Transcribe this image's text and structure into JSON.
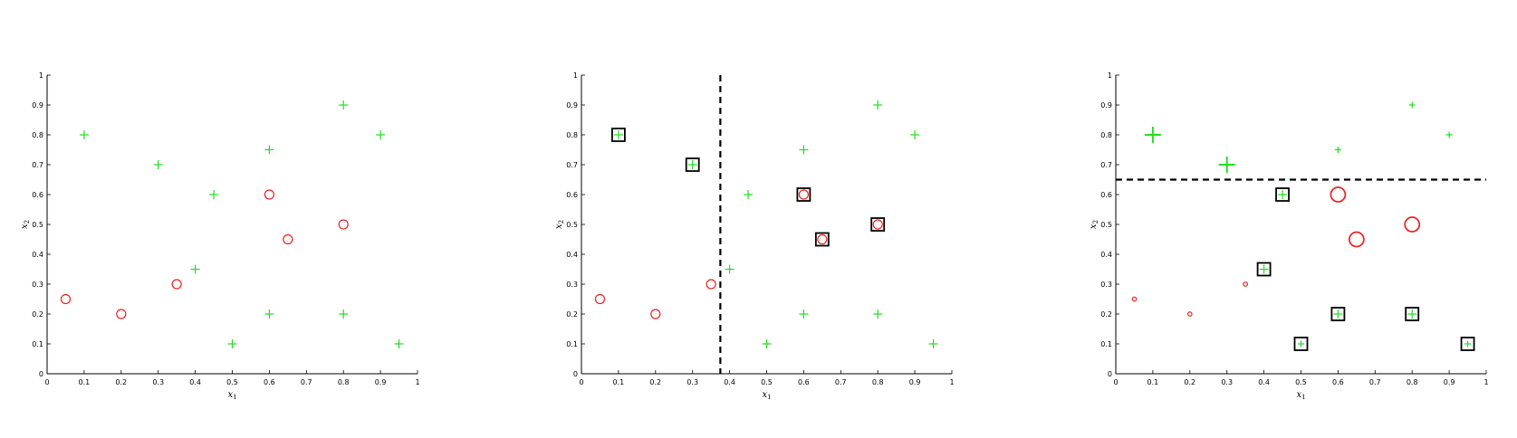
{
  "colors": {
    "positive": "#22dd22",
    "negative": "#ee2222",
    "axis": "#000000",
    "marker_box": "#000000",
    "boundary": "#000000"
  },
  "chart_data": [
    {
      "type": "scatter",
      "title": "",
      "xlabel": "x1",
      "ylabel": "x2",
      "xlim": [
        0,
        1
      ],
      "ylim": [
        0,
        1
      ],
      "xticks": [
        "0",
        "0.1",
        "0.2",
        "0.3",
        "0.4",
        "0.5",
        "0.6",
        "0.7",
        "0.8",
        "0.9",
        "1"
      ],
      "yticks": [
        "0",
        "0.1",
        "0.2",
        "0.3",
        "0.4",
        "0.5",
        "0.6",
        "0.7",
        "0.8",
        "0.9",
        "1"
      ],
      "grid": false,
      "boundary": null,
      "points": [
        {
          "x": 0.05,
          "y": 0.25,
          "label": "o",
          "weight": 1,
          "boxed": false
        },
        {
          "x": 0.2,
          "y": 0.2,
          "label": "o",
          "weight": 1,
          "boxed": false
        },
        {
          "x": 0.35,
          "y": 0.3,
          "label": "o",
          "weight": 1,
          "boxed": false
        },
        {
          "x": 0.6,
          "y": 0.6,
          "label": "o",
          "weight": 1,
          "boxed": false
        },
        {
          "x": 0.65,
          "y": 0.45,
          "label": "o",
          "weight": 1,
          "boxed": false
        },
        {
          "x": 0.8,
          "y": 0.5,
          "label": "o",
          "weight": 1,
          "boxed": false
        },
        {
          "x": 0.1,
          "y": 0.8,
          "label": "+",
          "weight": 1,
          "boxed": false
        },
        {
          "x": 0.3,
          "y": 0.7,
          "label": "+",
          "weight": 1,
          "boxed": false
        },
        {
          "x": 0.45,
          "y": 0.6,
          "label": "+",
          "weight": 1,
          "boxed": false
        },
        {
          "x": 0.4,
          "y": 0.35,
          "label": "+",
          "weight": 1,
          "boxed": false
        },
        {
          "x": 0.5,
          "y": 0.1,
          "label": "+",
          "weight": 1,
          "boxed": false
        },
        {
          "x": 0.6,
          "y": 0.2,
          "label": "+",
          "weight": 1,
          "boxed": false
        },
        {
          "x": 0.6,
          "y": 0.75,
          "label": "+",
          "weight": 1,
          "boxed": false
        },
        {
          "x": 0.8,
          "y": 0.9,
          "label": "+",
          "weight": 1,
          "boxed": false
        },
        {
          "x": 0.8,
          "y": 0.2,
          "label": "+",
          "weight": 1,
          "boxed": false
        },
        {
          "x": 0.9,
          "y": 0.8,
          "label": "+",
          "weight": 1,
          "boxed": false
        },
        {
          "x": 0.95,
          "y": 0.1,
          "label": "+",
          "weight": 1,
          "boxed": false
        }
      ]
    },
    {
      "type": "scatter",
      "title": "",
      "xlabel": "x1",
      "ylabel": "x2",
      "xlim": [
        0,
        1
      ],
      "ylim": [
        0,
        1
      ],
      "xticks": [
        "0",
        "0.1",
        "0.2",
        "0.3",
        "0.4",
        "0.5",
        "0.6",
        "0.7",
        "0.8",
        "0.9",
        "1"
      ],
      "yticks": [
        "0",
        "0.1",
        "0.2",
        "0.3",
        "0.4",
        "0.5",
        "0.6",
        "0.7",
        "0.8",
        "0.9",
        "1"
      ],
      "grid": false,
      "boundary": {
        "orientation": "vertical",
        "value": 0.375,
        "style": "dashed"
      },
      "points": [
        {
          "x": 0.05,
          "y": 0.25,
          "label": "o",
          "weight": 1,
          "boxed": false
        },
        {
          "x": 0.2,
          "y": 0.2,
          "label": "o",
          "weight": 1,
          "boxed": false
        },
        {
          "x": 0.35,
          "y": 0.3,
          "label": "o",
          "weight": 1,
          "boxed": false
        },
        {
          "x": 0.6,
          "y": 0.6,
          "label": "o",
          "weight": 1,
          "boxed": true
        },
        {
          "x": 0.65,
          "y": 0.45,
          "label": "o",
          "weight": 1,
          "boxed": true
        },
        {
          "x": 0.8,
          "y": 0.5,
          "label": "o",
          "weight": 1,
          "boxed": true
        },
        {
          "x": 0.1,
          "y": 0.8,
          "label": "+",
          "weight": 1,
          "boxed": true
        },
        {
          "x": 0.3,
          "y": 0.7,
          "label": "+",
          "weight": 1,
          "boxed": true
        },
        {
          "x": 0.45,
          "y": 0.6,
          "label": "+",
          "weight": 1,
          "boxed": false
        },
        {
          "x": 0.4,
          "y": 0.35,
          "label": "+",
          "weight": 1,
          "boxed": false
        },
        {
          "x": 0.5,
          "y": 0.1,
          "label": "+",
          "weight": 1,
          "boxed": false
        },
        {
          "x": 0.6,
          "y": 0.2,
          "label": "+",
          "weight": 1,
          "boxed": false
        },
        {
          "x": 0.6,
          "y": 0.75,
          "label": "+",
          "weight": 1,
          "boxed": false
        },
        {
          "x": 0.8,
          "y": 0.9,
          "label": "+",
          "weight": 1,
          "boxed": false
        },
        {
          "x": 0.8,
          "y": 0.2,
          "label": "+",
          "weight": 1,
          "boxed": false
        },
        {
          "x": 0.9,
          "y": 0.8,
          "label": "+",
          "weight": 1,
          "boxed": false
        },
        {
          "x": 0.95,
          "y": 0.1,
          "label": "+",
          "weight": 1,
          "boxed": false
        }
      ]
    },
    {
      "type": "scatter",
      "title": "",
      "xlabel": "x1",
      "ylabel": "x2",
      "xlim": [
        0,
        1
      ],
      "ylim": [
        0,
        1
      ],
      "xticks": [
        "0",
        "0.1",
        "0.2",
        "0.3",
        "0.4",
        "0.5",
        "0.6",
        "0.7",
        "0.8",
        "0.9",
        "1"
      ],
      "yticks": [
        "0",
        "0.1",
        "0.2",
        "0.3",
        "0.4",
        "0.5",
        "0.6",
        "0.7",
        "0.8",
        "0.9",
        "1"
      ],
      "grid": false,
      "boundary": {
        "orientation": "horizontal",
        "value": 0.65,
        "style": "dashed"
      },
      "points": [
        {
          "x": 0.05,
          "y": 0.25,
          "label": "o",
          "weight": 0.45,
          "boxed": false
        },
        {
          "x": 0.2,
          "y": 0.2,
          "label": "o",
          "weight": 0.45,
          "boxed": false
        },
        {
          "x": 0.35,
          "y": 0.3,
          "label": "o",
          "weight": 0.45,
          "boxed": false
        },
        {
          "x": 0.6,
          "y": 0.6,
          "label": "o",
          "weight": 1.6,
          "boxed": false
        },
        {
          "x": 0.65,
          "y": 0.45,
          "label": "o",
          "weight": 1.6,
          "boxed": false
        },
        {
          "x": 0.8,
          "y": 0.5,
          "label": "o",
          "weight": 1.6,
          "boxed": false
        },
        {
          "x": 0.1,
          "y": 0.8,
          "label": "+",
          "weight": 1.8,
          "boxed": false
        },
        {
          "x": 0.3,
          "y": 0.7,
          "label": "+",
          "weight": 1.8,
          "boxed": false
        },
        {
          "x": 0.45,
          "y": 0.6,
          "label": "+",
          "weight": 1,
          "boxed": true
        },
        {
          "x": 0.4,
          "y": 0.35,
          "label": "+",
          "weight": 1,
          "boxed": true
        },
        {
          "x": 0.5,
          "y": 0.1,
          "label": "+",
          "weight": 0.7,
          "boxed": true
        },
        {
          "x": 0.6,
          "y": 0.2,
          "label": "+",
          "weight": 1,
          "boxed": true
        },
        {
          "x": 0.6,
          "y": 0.75,
          "label": "+",
          "weight": 0.7,
          "boxed": false
        },
        {
          "x": 0.8,
          "y": 0.9,
          "label": "+",
          "weight": 0.7,
          "boxed": false
        },
        {
          "x": 0.8,
          "y": 0.2,
          "label": "+",
          "weight": 1,
          "boxed": true
        },
        {
          "x": 0.9,
          "y": 0.8,
          "label": "+",
          "weight": 0.7,
          "boxed": false
        },
        {
          "x": 0.95,
          "y": 0.1,
          "label": "+",
          "weight": 0.7,
          "boxed": true
        }
      ]
    }
  ]
}
